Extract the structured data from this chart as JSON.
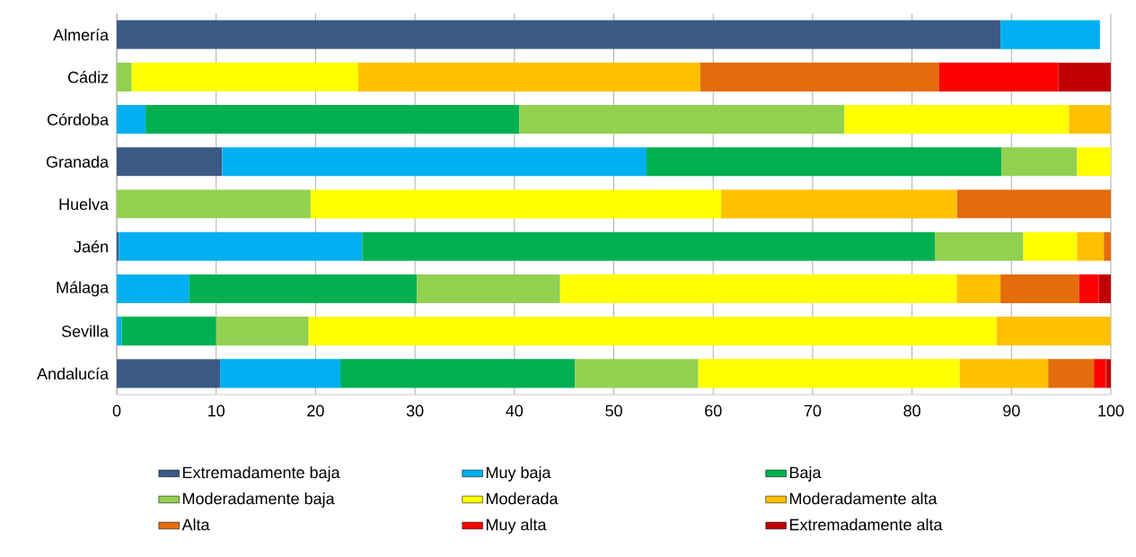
{
  "chart_data": {
    "type": "bar",
    "orientation": "horizontal",
    "stacked": true,
    "categories": [
      "Almería",
      "Cádiz",
      "Córdoba",
      "Granada",
      "Huelva",
      "Jaén",
      "Málaga",
      "Sevilla",
      "Andalucía"
    ],
    "series": [
      {
        "name": "Extremadamente baja",
        "color": "#3a5a85",
        "values": [
          88.9,
          null,
          null,
          10.6,
          null,
          0.2,
          null,
          null,
          10.4
        ]
      },
      {
        "name": "Muy baja",
        "color": "#00b0f0",
        "values": [
          10.0,
          null,
          2.9,
          42.7,
          null,
          24.5,
          7.3,
          0.5,
          12.1
        ]
      },
      {
        "name": "Baja",
        "color": "#00b050",
        "values": [
          null,
          null,
          37.6,
          35.7,
          null,
          57.6,
          22.9,
          9.5,
          23.6
        ]
      },
      {
        "name": "Moderadamente baja",
        "color": "#92d050",
        "values": [
          null,
          1.5,
          32.7,
          7.6,
          19.5,
          8.9,
          14.4,
          9.3,
          12.4
        ]
      },
      {
        "name": "Moderada",
        "color": "#ffff00",
        "values": [
          null,
          22.8,
          22.6,
          3.4,
          41.3,
          5.4,
          39.9,
          69.2,
          26.3
        ]
      },
      {
        "name": "Moderadamente alta",
        "color": "#ffc000",
        "values": [
          null,
          34.4,
          4.2,
          null,
          23.7,
          2.7,
          4.4,
          11.5,
          8.9
        ]
      },
      {
        "name": "Alta",
        "color": "#e46c0a",
        "values": [
          null,
          24.0,
          null,
          null,
          15.5,
          0.7,
          7.9,
          null,
          4.6
        ]
      },
      {
        "name": "Muy alta",
        "color": "#ff0000",
        "values": [
          null,
          12.0,
          null,
          null,
          null,
          null,
          2.0,
          null,
          1.2
        ]
      },
      {
        "name": "Extremadamente alta",
        "color": "#c00000",
        "values": [
          null,
          5.3,
          null,
          null,
          null,
          null,
          1.2,
          null,
          0.5
        ]
      }
    ],
    "xlim": [
      0,
      100
    ],
    "xticks": [
      0,
      10,
      20,
      30,
      40,
      50,
      60,
      70,
      80,
      90,
      100
    ],
    "grid": "x",
    "legend": "bottom"
  }
}
